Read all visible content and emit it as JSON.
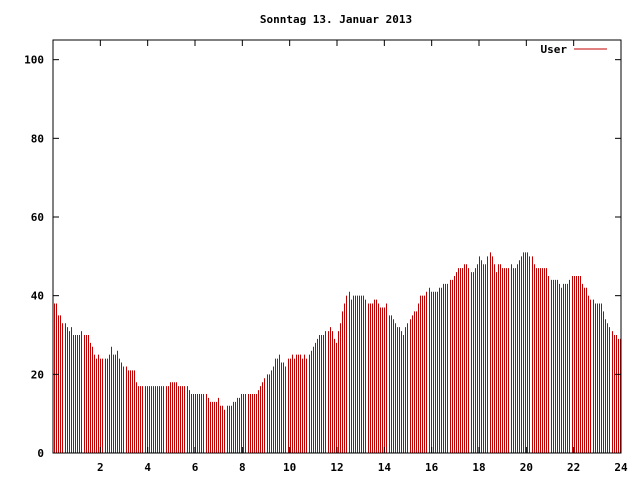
{
  "chart_data": {
    "type": "bar",
    "title": "Sonntag 13. Januar 2013",
    "xlabel": "",
    "ylabel": "",
    "xlim": [
      0,
      24
    ],
    "ylim": [
      0,
      105
    ],
    "xticks": [
      2,
      4,
      6,
      8,
      10,
      12,
      14,
      16,
      18,
      20,
      22,
      24
    ],
    "yticks": [
      0,
      20,
      40,
      60,
      80,
      100
    ],
    "grid": false,
    "legend_position": "top-right",
    "bar_color": "#c00000",
    "series": [
      {
        "name": "User",
        "values": [
          38,
          38,
          35,
          35,
          33,
          33,
          32,
          31,
          32,
          30,
          30,
          30,
          30,
          31,
          30,
          30,
          30,
          28,
          27,
          25,
          24,
          25,
          24,
          24,
          24,
          24,
          25,
          27,
          25,
          25,
          26,
          24,
          23,
          22,
          22,
          21,
          21,
          21,
          21,
          18,
          17,
          17,
          17,
          17,
          17,
          17,
          17,
          17,
          17,
          17,
          17,
          17,
          17,
          17,
          17,
          18,
          18,
          18,
          18,
          17,
          17,
          17,
          17,
          17,
          16,
          15,
          15,
          15,
          15,
          15,
          15,
          15,
          15,
          14,
          13,
          13,
          13,
          13,
          14,
          12,
          12,
          11,
          12,
          12,
          12,
          13,
          13,
          14,
          14,
          15,
          15,
          15,
          15,
          15,
          15,
          15,
          15,
          16,
          17,
          18,
          19,
          20,
          20,
          21,
          22,
          24,
          24,
          25,
          23,
          23,
          22,
          24,
          24,
          25,
          24,
          25,
          25,
          25,
          24,
          25,
          24,
          25,
          26,
          27,
          28,
          29,
          30,
          30,
          30,
          31,
          31,
          32,
          31,
          29,
          28,
          31,
          33,
          36,
          38,
          40,
          41,
          39,
          40,
          40,
          40,
          40,
          40,
          40,
          39,
          38,
          38,
          38,
          39,
          39,
          38,
          37,
          37,
          37,
          38,
          35,
          35,
          34,
          33,
          32,
          32,
          31,
          30,
          32,
          33,
          34,
          35,
          36,
          36,
          38,
          40,
          40,
          40,
          41,
          42,
          41,
          41,
          41,
          41,
          42,
          42,
          43,
          43,
          43,
          44,
          44,
          45,
          46,
          47,
          47,
          47,
          48,
          48,
          47,
          46,
          46,
          47,
          48,
          50,
          49,
          48,
          48,
          50,
          51,
          50,
          48,
          46,
          48,
          48,
          47,
          47,
          47,
          47,
          48,
          47,
          47,
          48,
          49,
          50,
          51,
          51,
          51,
          50,
          50,
          48,
          47,
          47,
          47,
          47,
          47,
          47,
          45,
          44,
          44,
          44,
          44,
          43,
          42,
          43,
          43,
          43,
          44,
          45,
          45,
          45,
          45,
          45,
          43,
          42,
          42,
          40,
          39,
          39,
          38,
          38,
          38,
          38,
          36,
          34,
          33,
          32,
          31,
          30,
          30,
          29,
          29
        ]
      }
    ]
  }
}
